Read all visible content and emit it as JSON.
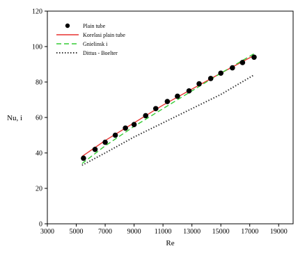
{
  "chart_data": {
    "type": "scatter",
    "xlabel": "Re",
    "ylabel": "Nu, i",
    "xlim": [
      3000,
      20000
    ],
    "ylim": [
      0,
      120
    ],
    "xticks": [
      "3000",
      "5000",
      "7000",
      "9000",
      "11000",
      "13000",
      "15000",
      "17000",
      "19000"
    ],
    "yticks": [
      "0",
      "20",
      "40",
      "60",
      "80",
      "100",
      "120"
    ],
    "grid": false,
    "legend_position": "top-left",
    "series": [
      {
        "name": "Plain tube",
        "kind": "markers",
        "color": "#000000",
        "x": [
          5500,
          6300,
          7000,
          7700,
          8400,
          9000,
          9800,
          10500,
          11300,
          12000,
          12800,
          13500,
          14300,
          15000,
          15800,
          16500,
          17300
        ],
        "y": [
          37,
          42,
          46,
          50,
          54,
          56,
          61,
          65,
          69,
          72,
          75,
          79,
          82,
          85,
          88,
          91,
          94
        ]
      },
      {
        "name": "Korelasi plain tube",
        "kind": "line",
        "style": "solid",
        "color": "#e8312f",
        "x": [
          5400,
          7000,
          9000,
          11000,
          13000,
          15000,
          17300
        ],
        "y": [
          38,
          47,
          57,
          67,
          76,
          85,
          95
        ]
      },
      {
        "name": "Gnielinsk i",
        "kind": "line",
        "style": "dashed",
        "color": "#33cc33",
        "x": [
          5400,
          7000,
          9000,
          11000,
          13000,
          15000,
          17300
        ],
        "y": [
          34,
          44,
          55,
          65,
          75,
          85,
          96
        ]
      },
      {
        "name": "Dittus - Boelter",
        "kind": "line",
        "style": "dotted",
        "color": "#333333",
        "x": [
          5400,
          7000,
          9000,
          11000,
          13000,
          15000,
          17300
        ],
        "y": [
          33,
          40,
          49,
          57,
          65,
          73,
          84
        ]
      }
    ]
  }
}
